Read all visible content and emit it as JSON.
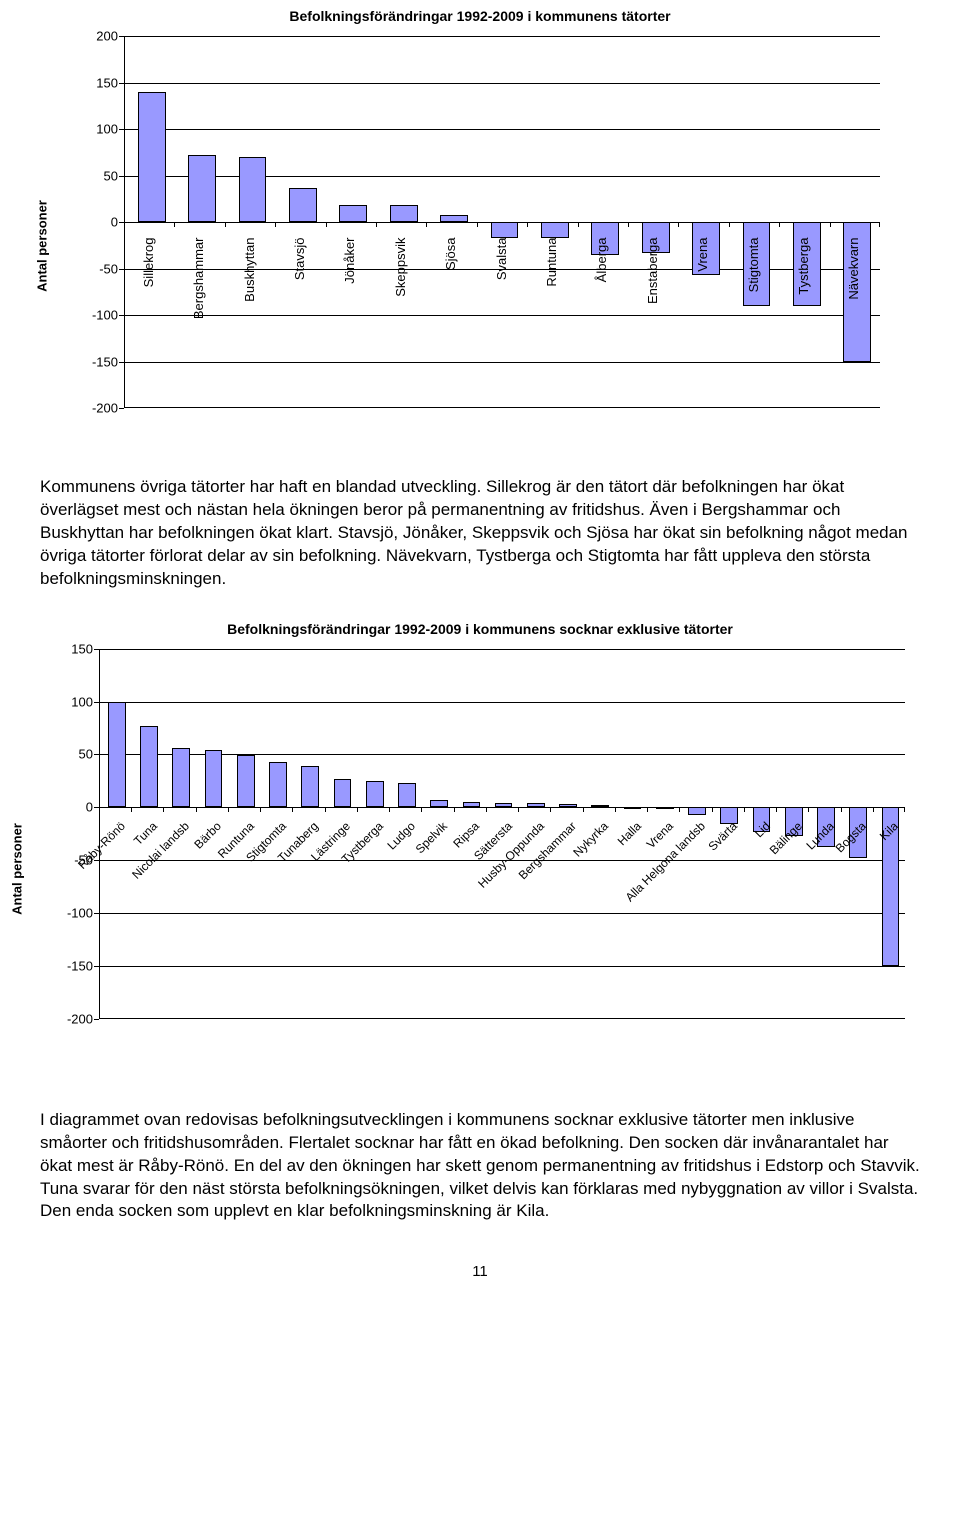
{
  "chart1": {
    "title": "Befolkningsförändringar 1992-2009 i  kommunens tätorter",
    "ylabel": "Antal personer",
    "ymin": -200,
    "ymax": 200,
    "ystep": 50,
    "bar_fill": "#9999ff",
    "bar_stroke": "#000000",
    "grid_color": "#000000",
    "categories": [
      "Sillekrog",
      "Bergshammar",
      "Buskhyttan",
      "Stavsjö",
      "Jönåker",
      "Skeppsvik",
      "Sjösa",
      "Svalsta",
      "Runtuna",
      "Ålberga",
      "Enstaberga",
      "Vrena",
      "Stigtomta",
      "Tystberga",
      "Nävekvarn"
    ],
    "values": [
      140,
      72,
      70,
      37,
      18,
      18,
      8,
      -17,
      -17,
      -35,
      -33,
      -57,
      -90,
      -90,
      -150
    ]
  },
  "para1": "Kommunens övriga tätorter har haft en blandad utveckling. Sillekrog är den tätort där befolkningen har ökat överlägset mest och nästan hela ökningen beror på permanentning av fritidshus. Även i Bergshammar och Buskhyttan har befolkningen ökat klart. Stavsjö, Jönåker, Skeppsvik och Sjösa har ökat sin befolkning något medan övriga tätorter förlorat delar av sin befolkning. Nävekvarn, Tystberga och Stigtomta har fått uppleva den största befolkningsminskningen.",
  "chart2": {
    "title": "Befolkningsförändringar 1992-2009 i kommunens socknar exklusive tätorter",
    "ylabel": "Antal personer",
    "ymin": -200,
    "ymax": 150,
    "ystep": 50,
    "bar_fill": "#9999ff",
    "bar_stroke": "#000000",
    "grid_color": "#000000",
    "categories": [
      "Råby-Rönö",
      "Tuna",
      "Nicolai landsb",
      "Bärbo",
      "Runtuna",
      "Stigtomta",
      "Tunaberg",
      "Lästringe",
      "Tystberga",
      "Ludgo",
      "Spelvik",
      "Ripsa",
      "Sättersta",
      "Husby-Oppunda",
      "Bergshammar",
      "Nykyrka",
      "Halla",
      "Vrena",
      "Alla Helgona landsb",
      "Svärta",
      "Lid",
      "Bälinge",
      "Lunda",
      "Bogsta",
      "Kila"
    ],
    "values": [
      100,
      77,
      56,
      54,
      49,
      43,
      39,
      27,
      25,
      23,
      7,
      5,
      4,
      4,
      3,
      2,
      0,
      -2,
      -7,
      -16,
      -23,
      -27,
      -38,
      -48,
      -150
    ]
  },
  "para2": "I diagrammet ovan redovisas befolkningsutvecklingen i kommunens socknar exklusive tätorter men inklusive småorter och fritidshusområden. Flertalet socknar har fått en ökad befolkning. Den socken där invånarantalet har ökat mest är Råby-Rönö. En del av den ökningen har skett genom permanentning av fritidshus i Edstorp och Stavvik. Tuna svarar för den näst största befolkningsökningen, vilket delvis kan förklaras med nybyggnation av villor i Svalsta. Den enda socken som upplevt en klar befolkningsminskning är Kila.",
  "page_number": "11"
}
